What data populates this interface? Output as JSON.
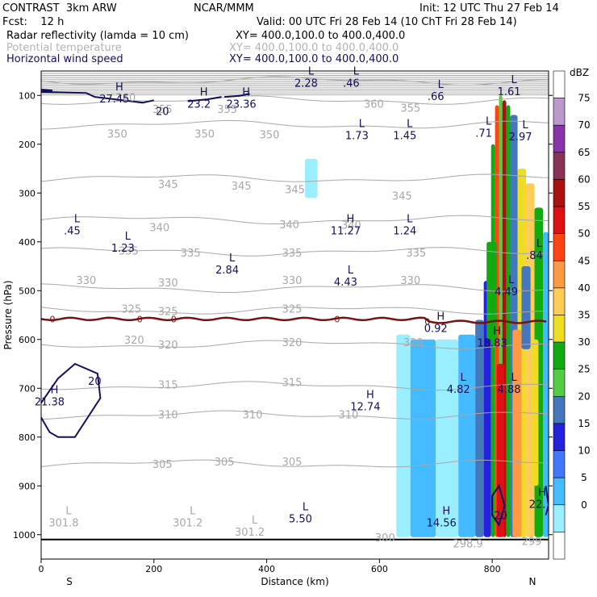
{
  "header": {
    "model": "CONTRAST  3km ARW",
    "org": "NCAR/MMM",
    "init": "Init: 12 UTC Thu 27 Feb 14",
    "fcst": "Fcst:    12 h",
    "valid": "Valid: 00 UTC Fri 28 Feb 14 (10 ChT Fri 28 Feb 14)",
    "field1": "Radar reflectivity (lamda = 10 cm)",
    "xy1": "XY= 400.0,100.0 to 400.0,400.0",
    "field2": "Potential temperature",
    "xy2": "XY= 400.0,100.0 to 400.0,400.0",
    "field3": "Horizontal wind speed",
    "xy3": "XY= 400.0,100.0 to 400.0,400.0"
  },
  "colors": {
    "theta": "#a8a8a8",
    "wind": "#101060",
    "zero_line": "#7a1010",
    "field2_text": "#b4b4b4",
    "field3_text": "#101060"
  },
  "chart_data": {
    "type": "heatmap",
    "xlabel": "Distance (km)",
    "ylabel": "Pressure (hPa)",
    "xlim": [
      0,
      900
    ],
    "ylim": [
      1050,
      50
    ],
    "x_ticks": [
      0,
      200,
      400,
      600,
      800
    ],
    "y_ticks": [
      100,
      200,
      300,
      400,
      500,
      600,
      700,
      800,
      900,
      1000
    ],
    "end_labels": {
      "left": "S",
      "right": "N"
    },
    "colorbar": {
      "unit": "dBZ",
      "levels": [
        75,
        70,
        65,
        60,
        55,
        50,
        45,
        40,
        35,
        30,
        25,
        20,
        15,
        10,
        5,
        0
      ],
      "colors": [
        "#ffffff",
        "#bb99cc",
        "#8833aa",
        "#883355",
        "#aa1111",
        "#dd1111",
        "#ff4411",
        "#ff9944",
        "#ffcc55",
        "#eedd22",
        "#11aa11",
        "#55cc44",
        "#4477bb",
        "#2222dd",
        "#4477ff",
        "#44bbff",
        "#99eeff",
        "#ffffff"
      ]
    },
    "theta_contours": [
      {
        "value": "360",
        "p": 70
      },
      {
        "value": "355",
        "p": 110
      },
      {
        "value": "350",
        "p": 160
      },
      {
        "value": "345",
        "p": 270
      },
      {
        "value": "340",
        "p": 355
      },
      {
        "value": "335",
        "p": 420
      },
      {
        "value": "330",
        "p": 495
      },
      {
        "value": "325",
        "p": 540
      },
      {
        "value": "320",
        "p": 610
      },
      {
        "value": "315",
        "p": 695
      },
      {
        "value": "310",
        "p": 755
      },
      {
        "value": "305",
        "p": 855
      }
    ],
    "theta_labels": [
      {
        "text": "360",
        "x": 150,
        "p": 104
      },
      {
        "text": "355",
        "x": 215,
        "p": 128
      },
      {
        "text": "355",
        "x": 330,
        "p": 128
      },
      {
        "text": "360",
        "x": 590,
        "p": 117
      },
      {
        "text": "355",
        "x": 655,
        "p": 125
      },
      {
        "text": "350",
        "x": 135,
        "p": 178
      },
      {
        "text": "350",
        "x": 290,
        "p": 178
      },
      {
        "text": "350",
        "x": 405,
        "p": 180
      },
      {
        "text": "345",
        "x": 225,
        "p": 281
      },
      {
        "text": "345",
        "x": 355,
        "p": 285
      },
      {
        "text": "345",
        "x": 450,
        "p": 292
      },
      {
        "text": "345",
        "x": 640,
        "p": 305
      },
      {
        "text": "340",
        "x": 210,
        "p": 370
      },
      {
        "text": "340",
        "x": 440,
        "p": 364
      },
      {
        "text": "340",
        "x": 550,
        "p": 365
      },
      {
        "text": "335",
        "x": 155,
        "p": 418
      },
      {
        "text": "335",
        "x": 265,
        "p": 422
      },
      {
        "text": "335",
        "x": 445,
        "p": 422
      },
      {
        "text": "335",
        "x": 665,
        "p": 422
      },
      {
        "text": "330",
        "x": 80,
        "p": 478
      },
      {
        "text": "330",
        "x": 225,
        "p": 483
      },
      {
        "text": "330",
        "x": 445,
        "p": 478
      },
      {
        "text": "330",
        "x": 655,
        "p": 478
      },
      {
        "text": "325",
        "x": 160,
        "p": 537
      },
      {
        "text": "325",
        "x": 225,
        "p": 542
      },
      {
        "text": "325",
        "x": 445,
        "p": 537
      },
      {
        "text": "320",
        "x": 165,
        "p": 600
      },
      {
        "text": "320",
        "x": 225,
        "p": 610
      },
      {
        "text": "320",
        "x": 445,
        "p": 605
      },
      {
        "text": "320",
        "x": 660,
        "p": 605
      },
      {
        "text": "315",
        "x": 225,
        "p": 692
      },
      {
        "text": "315",
        "x": 445,
        "p": 687
      },
      {
        "text": "310",
        "x": 225,
        "p": 753
      },
      {
        "text": "310",
        "x": 375,
        "p": 753
      },
      {
        "text": "310",
        "x": 545,
        "p": 753
      },
      {
        "text": "305",
        "x": 215,
        "p": 855
      },
      {
        "text": "305",
        "x": 325,
        "p": 850
      },
      {
        "text": "305",
        "x": 445,
        "p": 850
      },
      {
        "text": "300",
        "x": 610,
        "p": 1005
      },
      {
        "text": "298.9",
        "x": 757,
        "p": 1018
      },
      {
        "text": "299",
        "x": 870,
        "p": 1013
      }
    ],
    "extrema_labels": [
      {
        "letter": "H",
        "value": "27.45",
        "x": 130,
        "p": 95
      },
      {
        "letter": "H",
        "value": "23.2",
        "x": 280,
        "p": 105
      },
      {
        "letter": "H",
        "value": "23.36",
        "x": 355,
        "p": 105
      },
      {
        "letter": "L",
        "value": "2.28",
        "x": 470,
        "p": 62
      },
      {
        "letter": "L",
        "value": ".46",
        "x": 550,
        "p": 62
      },
      {
        "letter": "L",
        "value": ".66",
        "x": 700,
        "p": 90
      },
      {
        "letter": "L",
        "value": "1.61",
        "x": 830,
        "p": 80
      },
      {
        "letter": "L",
        "value": ".71",
        "x": 785,
        "p": 165
      },
      {
        "letter": "L",
        "value": "2.97",
        "x": 850,
        "p": 172
      },
      {
        "letter": "L",
        "value": "1.73",
        "x": 560,
        "p": 170
      },
      {
        "letter": "L",
        "value": "1.45",
        "x": 645,
        "p": 170
      },
      {
        "letter": "L",
        "value": ".45",
        "x": 55,
        "p": 365
      },
      {
        "letter": "L",
        "value": "1.23",
        "x": 145,
        "p": 400
      },
      {
        "letter": "L",
        "value": "2.84",
        "x": 330,
        "p": 445
      },
      {
        "letter": "H",
        "value": "11.27",
        "x": 540,
        "p": 365
      },
      {
        "letter": "L",
        "value": "1.24",
        "x": 645,
        "p": 365
      },
      {
        "letter": "L",
        "value": "4.43",
        "x": 540,
        "p": 470
      },
      {
        "letter": "L",
        "value": ".84",
        "x": 875,
        "p": 415
      },
      {
        "letter": "L",
        "value": "4.49",
        "x": 825,
        "p": 490
      },
      {
        "letter": "H",
        "value": "0.92",
        "x": 700,
        "p": 565
      },
      {
        "letter": "H",
        "value": "18.83",
        "x": 800,
        "p": 595
      },
      {
        "letter": "H",
        "value": "21.38",
        "x": 15,
        "p": 715
      },
      {
        "letter": "L",
        "value": "4.82",
        "x": 740,
        "p": 690
      },
      {
        "letter": "L",
        "value": "4.88",
        "x": 830,
        "p": 690
      },
      {
        "letter": "H",
        "value": "12.74",
        "x": 575,
        "p": 725
      },
      {
        "letter": "L",
        "value": "5.50",
        "x": 460,
        "p": 955
      },
      {
        "letter": "H",
        "value": "14.56",
        "x": 710,
        "p": 963
      },
      {
        "letter": "L",
        "value": "301.8",
        "x": 40,
        "p": 963
      },
      {
        "letter": "L",
        "value": "301.2",
        "x": 260,
        "p": 963
      },
      {
        "letter": "L",
        "value": "301.2",
        "x": 370,
        "p": 982
      },
      {
        "letter": "H",
        "value": "22.",
        "x": 880,
        "p": 925
      }
    ],
    "wind_labels": [
      {
        "text": "20",
        "x": 215,
        "p": 132
      },
      {
        "text": "20",
        "x": 95,
        "p": 685
      },
      {
        "text": "20",
        "x": 815,
        "p": 960
      }
    ],
    "zero_labels": [
      {
        "text": "0",
        "x": 20,
        "p": 558
      },
      {
        "text": "0",
        "x": 175,
        "p": 558
      },
      {
        "text": "0",
        "x": 235,
        "p": 558
      },
      {
        "text": "0",
        "x": 525,
        "p": 558
      },
      {
        "text": "0",
        "x": 685,
        "p": 563
      }
    ]
  }
}
